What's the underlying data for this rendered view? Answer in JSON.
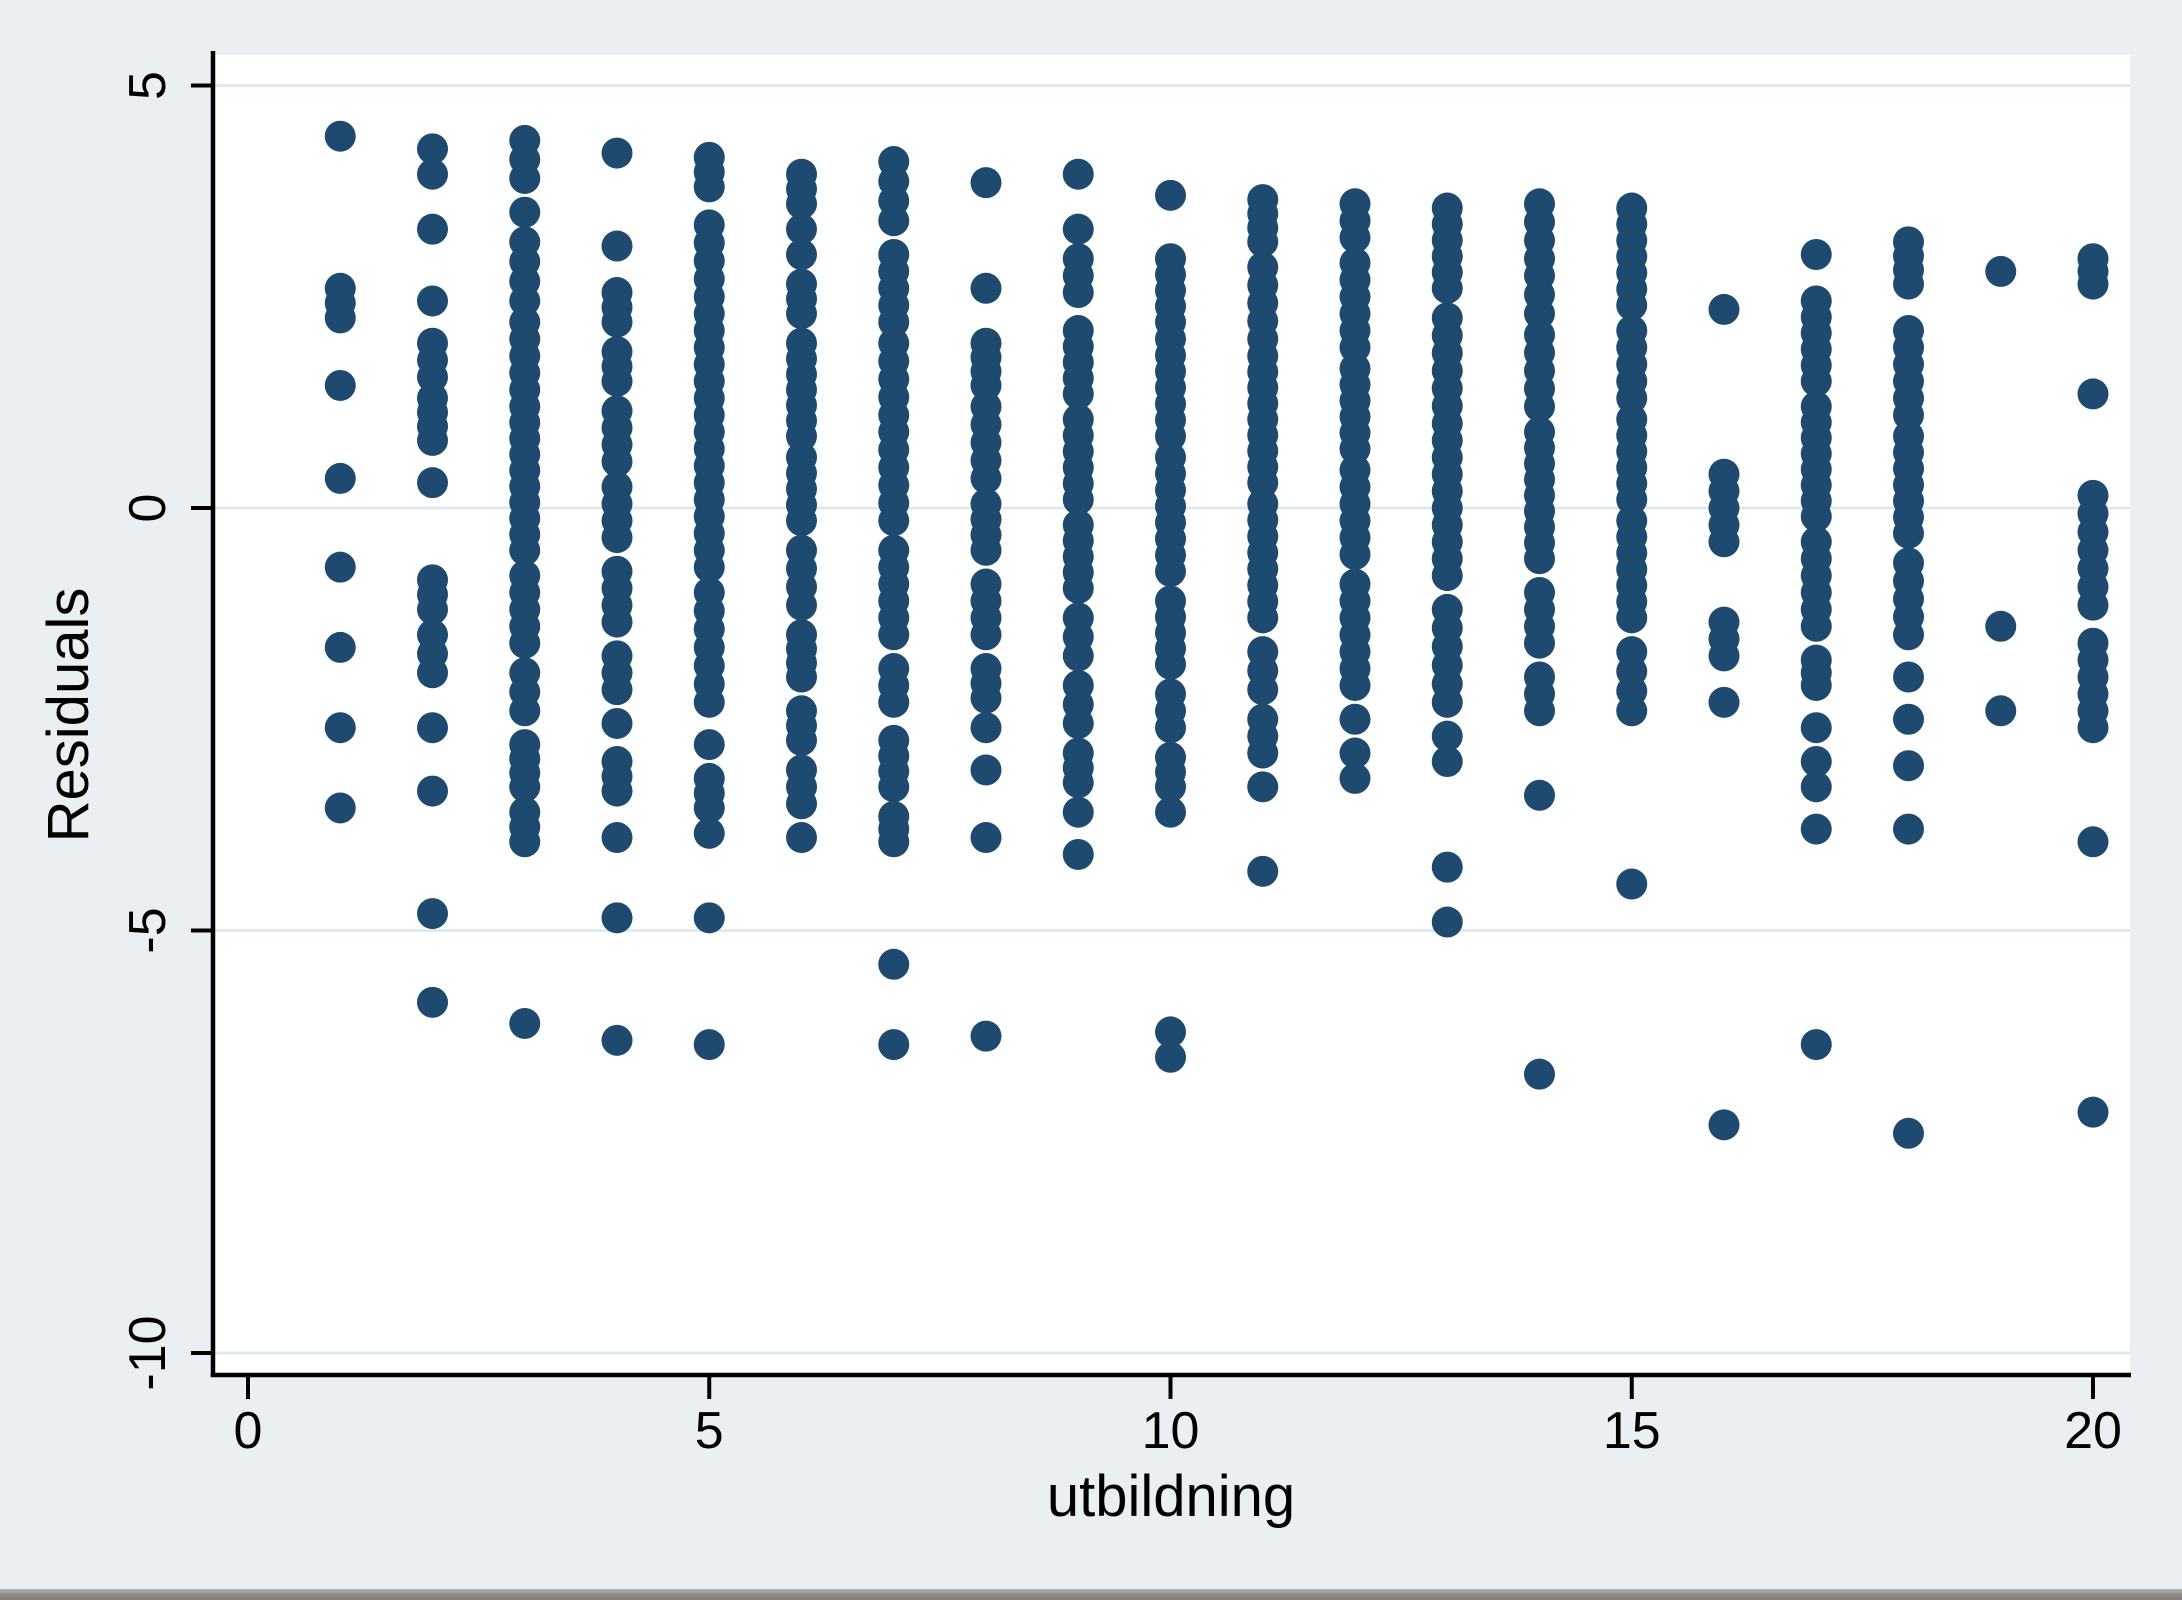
{
  "window": {
    "kind": "stata-graph",
    "bottom_edge": true
  },
  "colors": {
    "background": "#e9eff2",
    "plot_background": "#ffffff",
    "gridline": "#dfeaee",
    "axis": "#000000",
    "marker": "#1f4a70",
    "window_edge_top": "#b2b2b0",
    "window_edge_bottom": "#7b7b79"
  },
  "chart_data": {
    "type": "scatter",
    "title": "",
    "xlabel": "utbildning",
    "ylabel": "Residuals",
    "xlim": [
      -0.38,
      20.4
    ],
    "ylim": [
      -10.4,
      5.4
    ],
    "grid": "horizontal",
    "legend": "none",
    "marker_color": "#1f4a70",
    "x_ticks": [
      {
        "value": 0,
        "label": "0"
      },
      {
        "value": 5,
        "label": "5"
      },
      {
        "value": 10,
        "label": "10"
      },
      {
        "value": 15,
        "label": "15"
      },
      {
        "value": 20,
        "label": "20"
      }
    ],
    "y_ticks": [
      {
        "value": 5,
        "label": "5"
      },
      {
        "value": 0,
        "label": "0"
      },
      {
        "value": -5,
        "label": "-5"
      },
      {
        "value": -10,
        "label": "-10"
      }
    ],
    "series_note": "Residuals plotted against years of education; dots = single observations, runs = dense vertical bands [high,low] of overlapping markers",
    "columns": [
      {
        "x": 1,
        "dots": [
          4.4,
          1.45,
          0.35,
          -0.7,
          -1.65,
          -2.6,
          -3.55
        ],
        "runs": [
          [
            2.6,
            2.25
          ]
        ]
      },
      {
        "x": 2,
        "dots": [
          4.25,
          3.95,
          3.3,
          2.45,
          0.3,
          -2.6,
          -3.35,
          -4.8,
          -5.85
        ],
        "runs": [
          [
            1.95,
            1.55
          ],
          [
            1.3,
            0.8
          ],
          [
            -0.85,
            -1.2
          ],
          [
            -1.5,
            -1.95
          ]
        ]
      },
      {
        "x": 3,
        "dots": [
          3.5,
          -6.1
        ],
        "runs": [
          [
            4.35,
            3.9
          ],
          [
            3.15,
            2.45
          ],
          [
            2.2,
            1.4
          ],
          [
            1.2,
            -0.5
          ],
          [
            -0.8,
            -1.6
          ],
          [
            -1.95,
            -2.4
          ],
          [
            -2.8,
            -3.3
          ],
          [
            -3.6,
            -3.95
          ]
        ]
      },
      {
        "x": 4,
        "dots": [
          4.2,
          3.1,
          -2.55,
          -3.9,
          -4.85,
          -6.3
        ],
        "runs": [
          [
            2.55,
            2.2
          ],
          [
            1.85,
            1.5
          ],
          [
            1.15,
            0.55
          ],
          [
            0.25,
            -0.35
          ],
          [
            -0.75,
            -1.35
          ],
          [
            -1.75,
            -2.15
          ],
          [
            -3.0,
            -3.35
          ]
        ]
      },
      {
        "x": 5,
        "dots": [
          -2.8,
          -3.85,
          -4.85,
          -6.35
        ],
        "runs": [
          [
            4.15,
            3.8
          ],
          [
            3.35,
            2.5
          ],
          [
            2.3,
            -0.7
          ],
          [
            -1.0,
            -2.3
          ],
          [
            -3.2,
            -3.55
          ]
        ]
      },
      {
        "x": 6,
        "dots": [
          -3.9
        ],
        "runs": [
          [
            3.95,
            3.6
          ],
          [
            3.3,
            3.0
          ],
          [
            2.65,
            2.3
          ],
          [
            1.95,
            0.85
          ],
          [
            0.6,
            -0.15
          ],
          [
            -0.5,
            -1.15
          ],
          [
            -1.5,
            -2.0
          ],
          [
            -2.4,
            -2.75
          ],
          [
            -3.1,
            -3.5
          ]
        ]
      },
      {
        "x": 7,
        "dots": [
          -5.4,
          -6.35
        ],
        "runs": [
          [
            4.1,
            3.4
          ],
          [
            3.0,
            2.2
          ],
          [
            1.95,
            1.1
          ],
          [
            0.9,
            -0.15
          ],
          [
            -0.5,
            -1.5
          ],
          [
            -1.9,
            -2.3
          ],
          [
            -2.75,
            -3.3
          ],
          [
            -3.65,
            -3.95
          ]
        ]
      },
      {
        "x": 8,
        "dots": [
          3.85,
          2.6,
          -2.6,
          -3.1,
          -3.9,
          -6.25
        ],
        "runs": [
          [
            1.95,
            1.45
          ],
          [
            1.2,
            0.35
          ],
          [
            0.05,
            -0.5
          ],
          [
            -0.9,
            -1.5
          ],
          [
            -1.9,
            -2.25
          ]
        ]
      },
      {
        "x": 9,
        "dots": [
          3.95,
          3.3,
          -3.6,
          -4.1
        ],
        "runs": [
          [
            2.95,
            2.55
          ],
          [
            2.1,
            1.35
          ],
          [
            1.05,
            0.1
          ],
          [
            -0.2,
            -0.95
          ],
          [
            -1.3,
            -1.75
          ],
          [
            -2.1,
            -2.55
          ],
          [
            -2.9,
            -3.25
          ]
        ]
      },
      {
        "x": 10,
        "dots": [
          3.7,
          -3.6
        ],
        "runs": [
          [
            2.95,
            2.2
          ],
          [
            2.0,
            0.85
          ],
          [
            0.6,
            -0.75
          ],
          [
            -1.1,
            -1.85
          ],
          [
            -2.2,
            -2.6
          ],
          [
            -2.95,
            -3.3
          ],
          [
            -6.2,
            -6.5
          ]
        ]
      },
      {
        "x": 11,
        "dots": [
          -3.3,
          -4.3
        ],
        "runs": [
          [
            3.65,
            3.15
          ],
          [
            2.85,
            2.0
          ],
          [
            1.8,
            0.3
          ],
          [
            0.05,
            -1.3
          ],
          [
            -1.7,
            -2.15
          ],
          [
            -2.5,
            -2.9
          ]
        ]
      },
      {
        "x": 12,
        "dots": [
          -2.5,
          -2.9,
          -3.2
        ],
        "runs": [
          [
            3.6,
            3.2
          ],
          [
            2.9,
            1.9
          ],
          [
            1.65,
            0.7
          ],
          [
            0.45,
            -0.55
          ],
          [
            -0.9,
            -2.1
          ]
        ]
      },
      {
        "x": 13,
        "dots": [
          -4.25,
          -4.9
        ],
        "runs": [
          [
            3.55,
            2.6
          ],
          [
            2.25,
            1.0
          ],
          [
            0.8,
            -0.8
          ],
          [
            -1.2,
            -2.3
          ],
          [
            -2.7,
            -3.0
          ]
        ]
      },
      {
        "x": 14,
        "dots": [
          -3.4,
          -6.7
        ],
        "runs": [
          [
            3.6,
            2.95
          ],
          [
            2.75,
            2.3
          ],
          [
            2.05,
            1.2
          ],
          [
            0.9,
            -0.6
          ],
          [
            -1.0,
            -1.6
          ],
          [
            -2.0,
            -2.4
          ]
        ]
      },
      {
        "x": 15,
        "dots": [
          -4.45
        ],
        "runs": [
          [
            3.55,
            2.4
          ],
          [
            2.1,
            1.3
          ],
          [
            1.05,
            0.1
          ],
          [
            -0.15,
            -1.3
          ],
          [
            -1.7,
            -2.4
          ]
        ]
      },
      {
        "x": 16,
        "dots": [
          2.35,
          -2.3,
          -7.3
        ],
        "runs": [
          [
            0.4,
            -0.4
          ],
          [
            -1.35,
            -1.75
          ]
        ]
      },
      {
        "x": 17,
        "dots": [
          3.0,
          -2.6,
          -3.8,
          -6.35
        ],
        "runs": [
          [
            2.45,
            1.5
          ],
          [
            1.2,
            -0.1
          ],
          [
            -0.4,
            -1.4
          ],
          [
            -1.8,
            -2.1
          ],
          [
            -3.0,
            -3.3
          ]
        ]
      },
      {
        "x": 18,
        "dots": [
          -2.0,
          -2.5,
          -3.05,
          -3.8,
          -7.4
        ],
        "runs": [
          [
            3.15,
            2.65
          ],
          [
            2.1,
            1.1
          ],
          [
            0.85,
            -0.3
          ],
          [
            -0.65,
            -1.5
          ]
        ]
      },
      {
        "x": 19,
        "dots": [
          2.8,
          -1.4,
          -2.4
        ],
        "runs": []
      },
      {
        "x": 20,
        "dots": [
          1.35,
          -3.95,
          -7.15
        ],
        "runs": [
          [
            2.95,
            2.65
          ],
          [
            0.15,
            -1.15
          ],
          [
            -1.6,
            -2.6
          ]
        ]
      }
    ]
  }
}
